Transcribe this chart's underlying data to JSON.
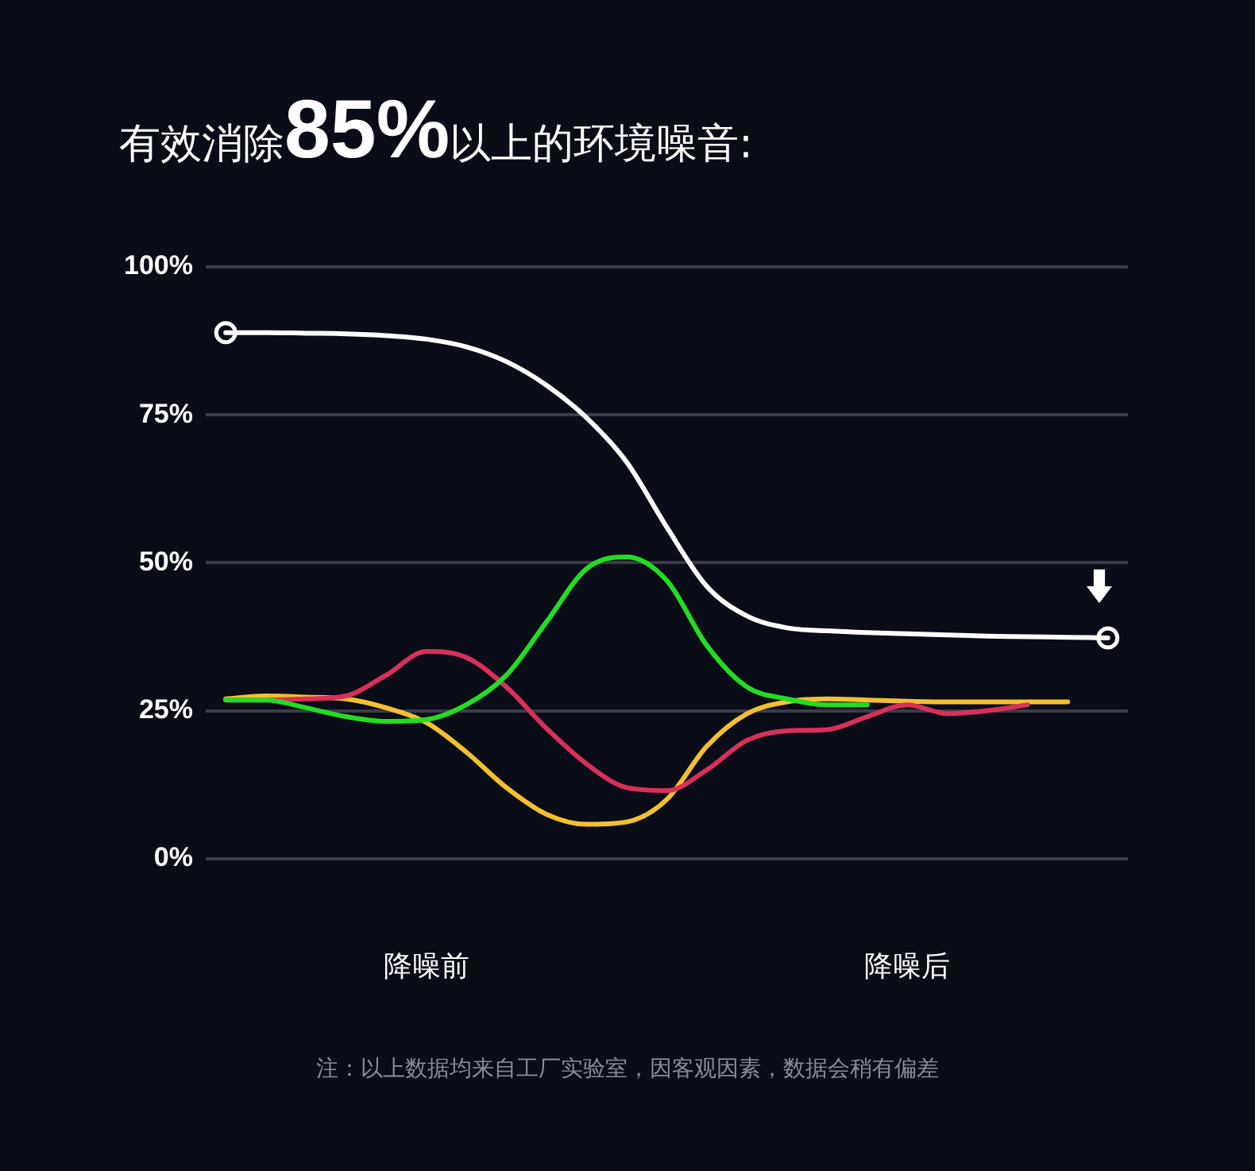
{
  "chart_data": {
    "type": "line",
    "title": "有效消除85%以上的环境噪音:",
    "categories": [
      null,
      null,
      null,
      null,
      null,
      "降噪前",
      null,
      null,
      null,
      null,
      null,
      null,
      null,
      null,
      null,
      null,
      null,
      "降噪后",
      null,
      null,
      null,
      null,
      null
    ],
    "series": [
      {
        "color": "#22dd22",
        "values": [
          26.8,
          26.8,
          25.5,
          24,
          23.2,
          23.5,
          26,
          31,
          40,
          49,
          51,
          47,
          36,
          29,
          27,
          26,
          26,
          null,
          null,
          null,
          null,
          null,
          null
        ]
      },
      {
        "color": "#d8305a",
        "values": [
          26.8,
          26.8,
          27,
          27.5,
          31,
          35,
          34,
          29,
          22,
          16,
          12,
          11.5,
          15,
          20,
          21.6,
          21.8,
          24,
          26,
          24.5,
          25,
          26,
          null,
          null
        ]
      },
      {
        "color": "#f5c030",
        "values": [
          27,
          27.5,
          27.3,
          27,
          25.5,
          23,
          18,
          12,
          7.5,
          5.8,
          6.2,
          10,
          19,
          24.5,
          26.5,
          27,
          26.8,
          26.6,
          26.5,
          26.5,
          26.5,
          26.5,
          null
        ]
      },
      {
        "color": "#ffffff",
        "values": [
          88.9,
          88.9,
          88.8,
          88.7,
          88.4,
          87.8,
          86.5,
          84,
          80,
          74.5,
          67,
          56,
          46,
          41,
          39,
          38.5,
          38.2,
          38,
          37.8,
          37.6,
          37.5,
          37.4,
          37.3
        ]
      },
      {
        "type": "scatter",
        "color": "#ffffff",
        "marker": "circle",
        "values": [
          88.9,
          null,
          null,
          null,
          null,
          null,
          null,
          null,
          null,
          null,
          null,
          null,
          null,
          null,
          null,
          null,
          null,
          null,
          null,
          null,
          null,
          null,
          37.3
        ]
      }
    ],
    "ylim": [
      0,
      100
    ],
    "yticks": [
      {
        "value": 0,
        "label": "0%"
      },
      {
        "value": 25,
        "label": "25%"
      },
      {
        "value": 50,
        "label": "50%"
      },
      {
        "value": 75,
        "label": "75%"
      },
      {
        "value": 100,
        "label": "100%"
      }
    ],
    "grid": "y",
    "legend": false,
    "annotations": [
      "注：以上数据均来自工厂实验室，因客观因素，数据会稍有偏差"
    ]
  }
}
